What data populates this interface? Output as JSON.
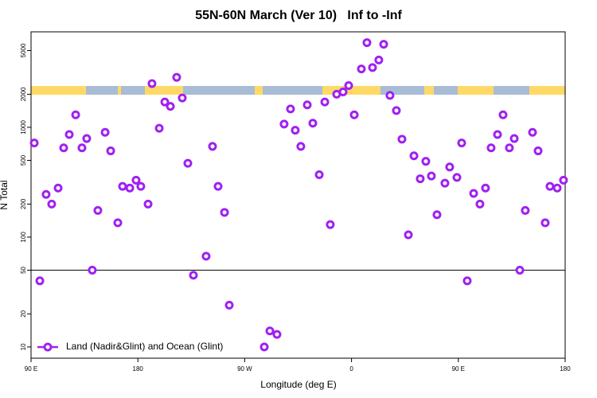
{
  "chart_data": {
    "type": "scatter",
    "title": "55N-60N March (Ver 10)   Inf to -Inf",
    "xlabel": "Longitude (deg E)",
    "ylabel": "N Total",
    "xlim": [
      90,
      540
    ],
    "xticks": [
      {
        "value": 90,
        "label": "90 E"
      },
      {
        "value": 180,
        "label": "180"
      },
      {
        "value": 270,
        "label": "90 W"
      },
      {
        "value": 360,
        "label": "0"
      },
      {
        "value": 450,
        "label": "90 E"
      },
      {
        "value": 540,
        "label": "180"
      }
    ],
    "ylim": [
      7.9,
      7400
    ],
    "yticks": [
      10,
      20,
      50,
      100,
      200,
      500,
      1000,
      2000,
      5000
    ],
    "log_y": true,
    "hline": 50,
    "legend": "bottom-left",
    "series": [
      {
        "name": "Land (Nadir&Glint) and Ocean (Glint)",
        "color": "#a020f0",
        "x": [
          92.7,
          97.4,
          102.7,
          107.4,
          112.8,
          117.5,
          122.2,
          127.6,
          132.9,
          136.9,
          141.6,
          146.3,
          152.4,
          157.1,
          163.1,
          167.1,
          173.2,
          178.5,
          182.5,
          188.6,
          191.9,
          198.0,
          202.7,
          207.4,
          212.7,
          217.4,
          222.1,
          226.8,
          237.5,
          242.9,
          247.6,
          253.0,
          257.0,
          286.5,
          291.2,
          297.2,
          303.2,
          308.6,
          312.6,
          317.3,
          322.7,
          327.4,
          332.8,
          337.5,
          342.1,
          347.5,
          352.9,
          357.6,
          362.3,
          368.3,
          373.0,
          377.7,
          383.0,
          387.1,
          392.4,
          397.8,
          402.5,
          407.9,
          412.6,
          417.9,
          422.6,
          427.3,
          432.0,
          438.7,
          442.7,
          448.8,
          452.8,
          457.5,
          462.9,
          468.2,
          472.9,
          477.6,
          483.0,
          487.7,
          493.0,
          497.1,
          501.8,
          506.4,
          512.5,
          517.2,
          523.2,
          527.2,
          533.3,
          538.6
        ],
        "values": [
          720,
          40,
          245,
          200,
          280,
          650,
          860,
          1300,
          650,
          790,
          50,
          175,
          900,
          610,
          135,
          290,
          280,
          330,
          290,
          200,
          2500,
          980,
          1700,
          1550,
          2850,
          1850,
          470,
          45,
          67,
          670,
          290,
          168,
          24,
          10,
          14,
          13,
          1070,
          1470,
          940,
          670,
          1600,
          1090,
          370,
          1700,
          130,
          2000,
          2100,
          2400,
          1300,
          3400,
          5900,
          3500,
          4100,
          5700,
          1950,
          1420,
          780,
          105,
          550,
          340,
          490,
          360,
          160,
          310,
          435,
          350,
          720,
          40,
          250,
          200,
          280,
          650,
          860,
          1300,
          650,
          790,
          50,
          175,
          900,
          610,
          135,
          290,
          280,
          330
        ]
      }
    ]
  }
}
